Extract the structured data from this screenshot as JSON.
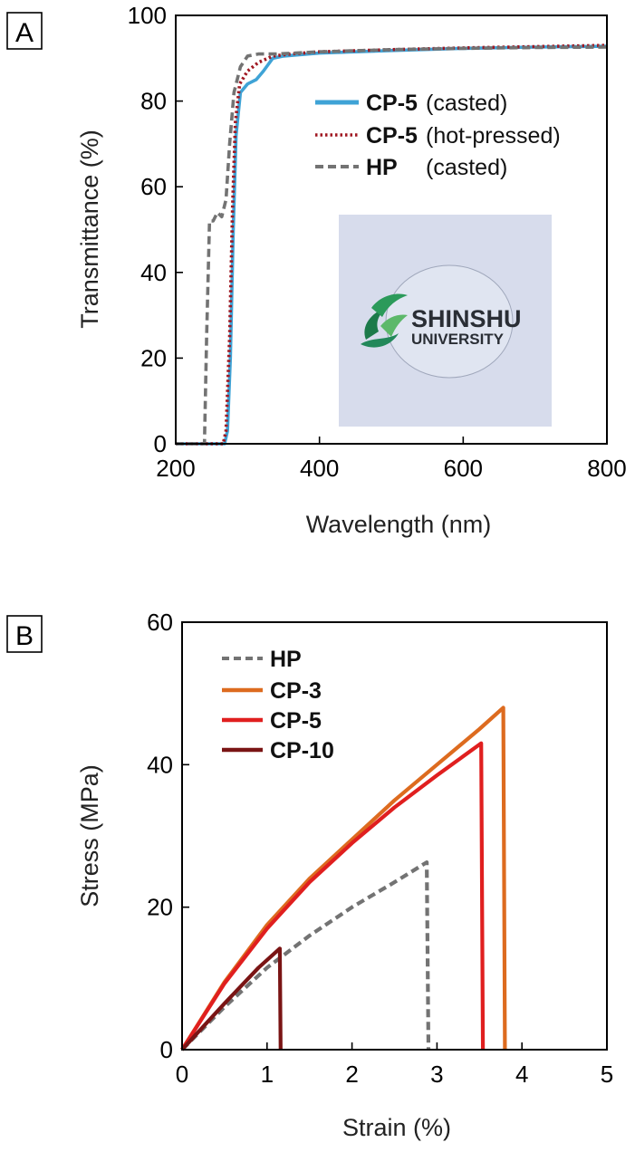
{
  "chart_data": [
    {
      "panel": "A",
      "type": "line",
      "xlabel": "Wavelength (nm)",
      "ylabel": "Transmittance (%)",
      "xlim": [
        200,
        800
      ],
      "ylim": [
        0,
        100
      ],
      "xticks": [
        "200",
        "400",
        "600",
        "800"
      ],
      "yticks": [
        "0",
        "20",
        "40",
        "60",
        "80",
        "100"
      ],
      "legend_position": "upper-right",
      "series": [
        {
          "name": "CP-5",
          "note": "(casted)",
          "color": "#3fa3d6",
          "dash": "solid",
          "points": [
            [
              200,
              0
            ],
            [
              268,
              0
            ],
            [
              272,
              3
            ],
            [
              276,
              20
            ],
            [
              280,
              50
            ],
            [
              284,
              72
            ],
            [
              290,
              82
            ],
            [
              300,
              84
            ],
            [
              312,
              85
            ],
            [
              322,
              87
            ],
            [
              335,
              90
            ],
            [
              350,
              90.5
            ],
            [
              400,
              91.2
            ],
            [
              500,
              91.8
            ],
            [
              600,
              92.3
            ],
            [
              700,
              92.6
            ],
            [
              800,
              92.8
            ]
          ]
        },
        {
          "name": "CP-5",
          "note": "(hot-pressed)",
          "color": "#a01822",
          "dash": "dotted",
          "points": [
            [
              200,
              0
            ],
            [
              266,
              0
            ],
            [
              270,
              3
            ],
            [
              275,
              25
            ],
            [
              279,
              55
            ],
            [
              283,
              75
            ],
            [
              289,
              84
            ],
            [
              300,
              87
            ],
            [
              315,
              89
            ],
            [
              335,
              90.5
            ],
            [
              360,
              91
            ],
            [
              400,
              91.5
            ],
            [
              500,
              92
            ],
            [
              600,
              92.4
            ],
            [
              700,
              92.7
            ],
            [
              800,
              93
            ]
          ]
        },
        {
          "name": "HP",
          "note": "(casted)",
          "color": "#737373",
          "dash": "dashed",
          "points": [
            [
              200,
              0
            ],
            [
              240,
              0
            ],
            [
              243,
              25
            ],
            [
              247,
              52
            ],
            [
              252,
              52
            ],
            [
              258,
              54
            ],
            [
              264,
              53
            ],
            [
              270,
              57
            ],
            [
              275,
              70
            ],
            [
              281,
              82
            ],
            [
              290,
              88
            ],
            [
              300,
              90.5
            ],
            [
              315,
              91
            ],
            [
              340,
              91
            ],
            [
              400,
              91.5
            ],
            [
              500,
              92
            ],
            [
              600,
              92.3
            ],
            [
              700,
              92.5
            ],
            [
              800,
              92.6
            ]
          ]
        }
      ],
      "inset_photo": {
        "logo_line1": "SHINSHU",
        "logo_line2": "UNIVERSITY"
      }
    },
    {
      "panel": "B",
      "type": "line",
      "xlabel": "Strain (%)",
      "ylabel": "Stress (MPa)",
      "xlim": [
        0,
        5
      ],
      "ylim": [
        0,
        60
      ],
      "xticks": [
        "0",
        "1",
        "2",
        "3",
        "4",
        "5"
      ],
      "yticks": [
        "0",
        "20",
        "40",
        "60"
      ],
      "legend_position": "upper-left",
      "series": [
        {
          "name": "HP",
          "color": "#737373",
          "dash": "dashed",
          "points": [
            [
              0,
              0
            ],
            [
              0.5,
              6
            ],
            [
              1,
              11.5
            ],
            [
              1.5,
              16
            ],
            [
              2,
              20
            ],
            [
              2.5,
              23.5
            ],
            [
              2.88,
              26.3
            ],
            [
              2.9,
              0
            ]
          ]
        },
        {
          "name": "CP-3",
          "color": "#dd6b1f",
          "dash": "solid",
          "points": [
            [
              0,
              0
            ],
            [
              0.5,
              9.5
            ],
            [
              1,
              17.5
            ],
            [
              1.5,
              24
            ],
            [
              2,
              29.5
            ],
            [
              2.5,
              35
            ],
            [
              3,
              40
            ],
            [
              3.5,
              45
            ],
            [
              3.78,
              48
            ],
            [
              3.8,
              0
            ]
          ]
        },
        {
          "name": "CP-5",
          "color": "#e01f1f",
          "dash": "solid",
          "points": [
            [
              0,
              0
            ],
            [
              0.5,
              9.3
            ],
            [
              1,
              17
            ],
            [
              1.5,
              23.5
            ],
            [
              2,
              29
            ],
            [
              2.5,
              34
            ],
            [
              3,
              38.5
            ],
            [
              3.52,
              43
            ],
            [
              3.54,
              0
            ]
          ]
        },
        {
          "name": "CP-10",
          "color": "#7a1414",
          "dash": "solid",
          "points": [
            [
              0,
              0
            ],
            [
              0.5,
              6.5
            ],
            [
              0.9,
              11.5
            ],
            [
              1.15,
              14.2
            ],
            [
              1.16,
              0
            ]
          ]
        }
      ]
    }
  ]
}
